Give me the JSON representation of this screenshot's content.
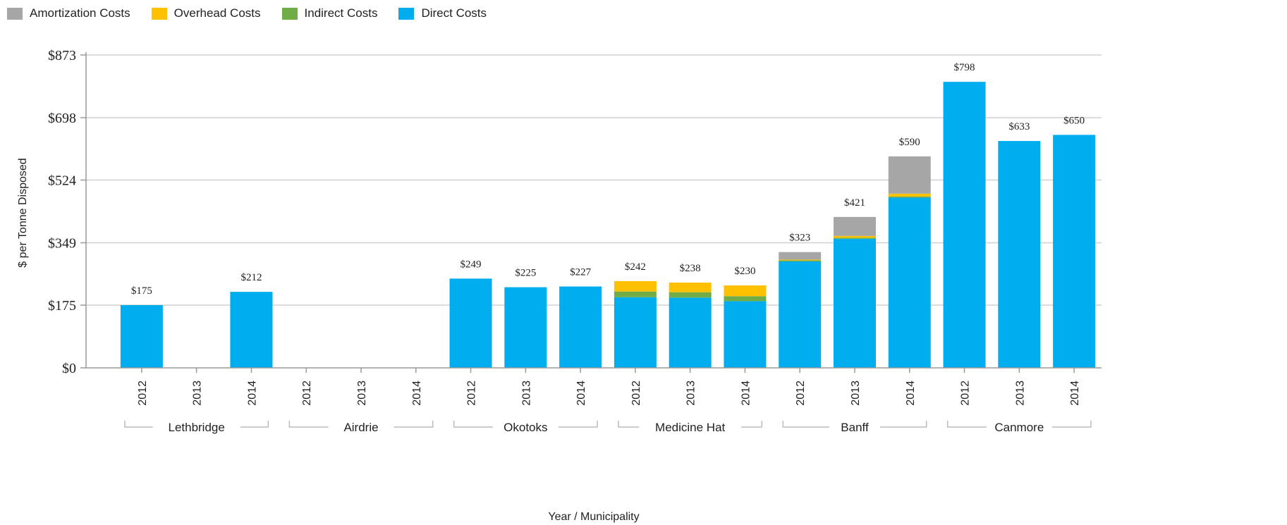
{
  "chart_data": {
    "type": "bar",
    "stacked": true,
    "xlabel": "Year / Municipality",
    "ylabel": "$ per Tonne Disposed",
    "ylim": [
      0,
      873
    ],
    "yticks": [
      0,
      175,
      349,
      524,
      698,
      873
    ],
    "ytick_labels": [
      "$0",
      "$175",
      "$349",
      "$524",
      "$698",
      "$873"
    ],
    "grid": true,
    "legend_position": "top-left",
    "groups": [
      {
        "name": "Lethbridge",
        "years": [
          "2012",
          "2013",
          "2014"
        ]
      },
      {
        "name": "Airdrie",
        "years": [
          "2012",
          "2013",
          "2014"
        ]
      },
      {
        "name": "Okotoks",
        "years": [
          "2012",
          "2013",
          "2014"
        ]
      },
      {
        "name": "Medicine Hat",
        "years": [
          "2012",
          "2013",
          "2014"
        ]
      },
      {
        "name": "Banff",
        "years": [
          "2012",
          "2013",
          "2014"
        ]
      },
      {
        "name": "Canmore",
        "years": [
          "2012",
          "2013",
          "2014"
        ]
      }
    ],
    "series": [
      {
        "name": "Direct Costs",
        "color": "#00aeef",
        "values": [
          175,
          null,
          212,
          null,
          null,
          null,
          249,
          225,
          227,
          197,
          196,
          186,
          297,
          360,
          475,
          798,
          633,
          650
        ]
      },
      {
        "name": "Indirect Costs",
        "color": "#70ad47",
        "values": [
          0,
          null,
          0,
          null,
          null,
          null,
          0,
          0,
          0,
          16,
          15,
          14,
          3,
          3,
          3,
          0,
          0,
          0
        ]
      },
      {
        "name": "Overhead Costs",
        "color": "#ffc000",
        "values": [
          0,
          null,
          0,
          null,
          null,
          null,
          0,
          0,
          0,
          29,
          27,
          30,
          2,
          5,
          8,
          0,
          0,
          0
        ]
      },
      {
        "name": "Amortization Costs",
        "color": "#a6a6a6",
        "values": [
          0,
          null,
          0,
          null,
          null,
          null,
          0,
          0,
          0,
          0,
          0,
          0,
          21,
          53,
          104,
          0,
          0,
          0
        ]
      }
    ],
    "totals": [
      "$175",
      "",
      "$212",
      "",
      "",
      "",
      "$249",
      "$225",
      "$227",
      "$242",
      "$238",
      "$230",
      "$323",
      "$421",
      "$590",
      "$798",
      "$633",
      "$650"
    ],
    "legend": [
      {
        "label": "Amortization Costs",
        "color": "#a6a6a6"
      },
      {
        "label": "Overhead Costs",
        "color": "#ffc000"
      },
      {
        "label": "Indirect Costs",
        "color": "#70ad47"
      },
      {
        "label": "Direct Costs",
        "color": "#00aeef"
      }
    ]
  }
}
